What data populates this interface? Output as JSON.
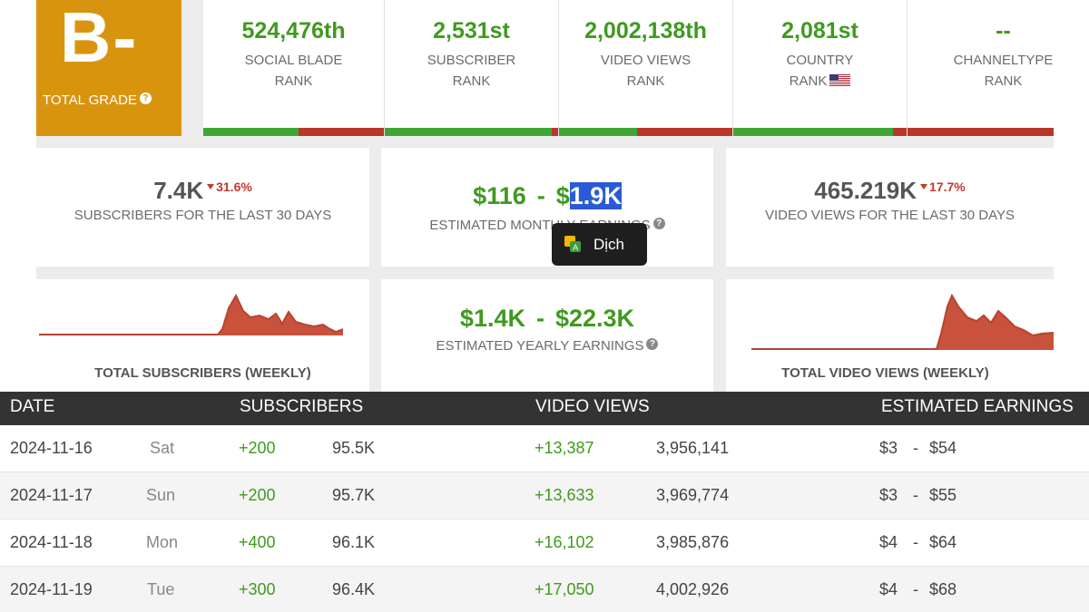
{
  "grade": {
    "letter": "B-",
    "label": "TOTAL GRADE",
    "help": "?"
  },
  "ranks": [
    {
      "value": "524,476th",
      "line1": "SOCIAL BLADE",
      "line2": "RANK"
    },
    {
      "value": "2,531st",
      "line1": "SUBSCRIBER",
      "line2": "RANK"
    },
    {
      "value": "2,002,138th",
      "line1": "VIDEO VIEWS",
      "line2": "RANK"
    },
    {
      "value": "2,081st",
      "line1": "COUNTRY",
      "line2": "RANK",
      "flag": "us-flag-icon"
    },
    {
      "value": "--",
      "line1": "CHANNELTYPE",
      "line2": "RANK"
    }
  ],
  "stats": {
    "subs30": {
      "value": "7.4K",
      "delta": "31.6%",
      "label": "SUBSCRIBERS FOR THE LAST 30 DAYS"
    },
    "monthly": {
      "low": "$116",
      "sep": "-",
      "high_prefix": "$",
      "high_selected": "1.9K",
      "label_visible": "ESTIMATED MONTH",
      "label_hidden": "LY EARNINGS"
    },
    "views30": {
      "value": "465.219K",
      "delta": "17.7%",
      "label": "VIDEO VIEWS FOR THE LAST 30 DAYS"
    },
    "yearly": {
      "low": "$1.4K",
      "sep": "-",
      "high": "$22.3K",
      "label": "ESTIMATED YEARLY EARNINGS"
    }
  },
  "tooltip": {
    "label": "Dịch",
    "icon": "translate-icon"
  },
  "charts": {
    "subs_title": "TOTAL SUBSCRIBERS (WEEKLY)",
    "views_title": "TOTAL VIDEO VIEWS (WEEKLY)",
    "color": "#c9523c"
  },
  "table": {
    "headers": {
      "date": "DATE",
      "subscribers": "SUBSCRIBERS",
      "views": "VIDEO VIEWS",
      "earnings": "ESTIMATED EARNINGS"
    },
    "rows": [
      {
        "date": "2024-11-16",
        "day": "Sat",
        "sub_delta": "+200",
        "subs": "95.5K",
        "view_delta": "+13,387",
        "views": "3,956,141",
        "earn_low": "$3",
        "sep": "-",
        "earn_high": "$54"
      },
      {
        "date": "2024-11-17",
        "day": "Sun",
        "sub_delta": "+200",
        "subs": "95.7K",
        "view_delta": "+13,633",
        "views": "3,969,774",
        "earn_low": "$3",
        "sep": "-",
        "earn_high": "$55"
      },
      {
        "date": "2024-11-18",
        "day": "Mon",
        "sub_delta": "+400",
        "subs": "96.1K",
        "view_delta": "+16,102",
        "views": "3,985,876",
        "earn_low": "$4",
        "sep": "-",
        "earn_high": "$64"
      },
      {
        "date": "2024-11-19",
        "day": "Tue",
        "sub_delta": "+300",
        "subs": "96.4K",
        "view_delta": "+17,050",
        "views": "4,002,926",
        "earn_low": "$4",
        "sep": "-",
        "earn_high": "$68"
      }
    ]
  },
  "colors": {
    "accent_green": "#3f9a1f",
    "grade_orange": "#d9940f",
    "negative_red": "#c4392b",
    "header_dark": "#333333"
  }
}
